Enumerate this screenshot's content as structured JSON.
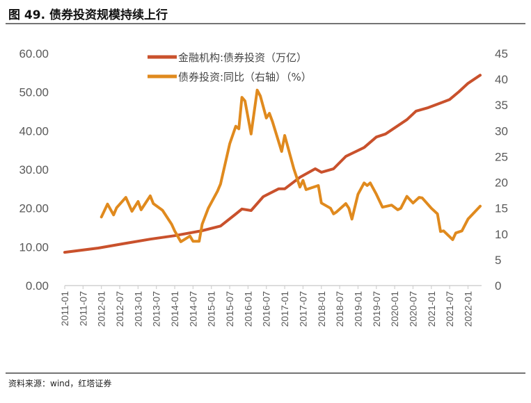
{
  "header": {
    "title": "图 49. 债券投资规模持续上行"
  },
  "footer": {
    "source": "资料来源：wind，红塔证券"
  },
  "chart_data": {
    "type": "line",
    "title": "图 49. 债券投资规模持续上行",
    "x_ticks": [
      "2011-01",
      "2011-07",
      "2012-01",
      "2012-07",
      "2013-01",
      "2013-07",
      "2014-01",
      "2014-07",
      "2015-01",
      "2015-07",
      "2016-01",
      "2016-07",
      "2017-01",
      "2017-07",
      "2018-01",
      "2018-07",
      "2019-01",
      "2019-07",
      "2020-01",
      "2020-07",
      "2021-01",
      "2021-07",
      "2022-01"
    ],
    "y_left": {
      "range": [
        0,
        60
      ],
      "ticks": [
        "0.00",
        "10.00",
        "20.00",
        "30.00",
        "40.00",
        "50.00",
        "60.00"
      ]
    },
    "y_right": {
      "range": [
        0,
        45
      ],
      "ticks": [
        "0",
        "5",
        "10",
        "15",
        "20",
        "25",
        "30",
        "35",
        "40",
        "45"
      ]
    },
    "legend_position": "top-center",
    "series": [
      {
        "name": "金融机构:债券投资（万亿）",
        "axis": "left",
        "color": "#C9512C",
        "points": [
          [
            "2011-01",
            8.6
          ],
          [
            "2011-12",
            9.7
          ],
          [
            "2012-08",
            10.8
          ],
          [
            "2013-05",
            12.0
          ],
          [
            "2014-01",
            12.9
          ],
          [
            "2014-10",
            14.2
          ],
          [
            "2015-04",
            15.4
          ],
          [
            "2015-09",
            18.5
          ],
          [
            "2015-11",
            19.8
          ],
          [
            "2016-02",
            19.4
          ],
          [
            "2016-06",
            23.0
          ],
          [
            "2016-11",
            25.0
          ],
          [
            "2017-01",
            25.0
          ],
          [
            "2017-06",
            28.0
          ],
          [
            "2017-11",
            30.2
          ],
          [
            "2018-01",
            29.3
          ],
          [
            "2018-05",
            30.2
          ],
          [
            "2018-09",
            33.4
          ],
          [
            "2019-03",
            35.7
          ],
          [
            "2019-07",
            38.4
          ],
          [
            "2019-10",
            39.2
          ],
          [
            "2020-05",
            42.9
          ],
          [
            "2020-08",
            45.1
          ],
          [
            "2020-12",
            46.0
          ],
          [
            "2021-04",
            47.2
          ],
          [
            "2021-07",
            48.1
          ],
          [
            "2021-10",
            50.1
          ],
          [
            "2022-01",
            52.3
          ],
          [
            "2022-05",
            54.4
          ]
        ]
      },
      {
        "name": "债券投资:同比（右轴）（%）",
        "axis": "right",
        "color": "#E08A1E",
        "points": [
          [
            "2012-01",
            13.3
          ],
          [
            "2012-03",
            15.8
          ],
          [
            "2012-05",
            13.7
          ],
          [
            "2012-06",
            15.1
          ],
          [
            "2012-09",
            17.1
          ],
          [
            "2012-11",
            14.4
          ],
          [
            "2013-01",
            16.3
          ],
          [
            "2013-02",
            14.7
          ],
          [
            "2013-05",
            17.4
          ],
          [
            "2013-06",
            15.9
          ],
          [
            "2013-09",
            14.6
          ],
          [
            "2013-12",
            11.9
          ],
          [
            "2014-01",
            10.6
          ],
          [
            "2014-03",
            8.5
          ],
          [
            "2014-06",
            9.6
          ],
          [
            "2014-07",
            8.6
          ],
          [
            "2014-09",
            8.6
          ],
          [
            "2014-10",
            11.9
          ],
          [
            "2014-12",
            15.0
          ],
          [
            "2015-03",
            18.3
          ],
          [
            "2015-04",
            19.7
          ],
          [
            "2015-07",
            27.5
          ],
          [
            "2015-09",
            30.9
          ],
          [
            "2015-10",
            30.4
          ],
          [
            "2015-11",
            36.5
          ],
          [
            "2015-12",
            35.8
          ],
          [
            "2016-02",
            29.4
          ],
          [
            "2016-04",
            37.9
          ],
          [
            "2016-05",
            36.8
          ],
          [
            "2016-07",
            32.5
          ],
          [
            "2016-08",
            33.4
          ],
          [
            "2016-09",
            31.8
          ],
          [
            "2016-12",
            26.0
          ],
          [
            "2017-01",
            29.1
          ],
          [
            "2017-04",
            22.6
          ],
          [
            "2017-06",
            19.1
          ],
          [
            "2017-07",
            20.4
          ],
          [
            "2017-08",
            18.6
          ],
          [
            "2017-12",
            19.4
          ],
          [
            "2018-01",
            16.0
          ],
          [
            "2018-04",
            15.0
          ],
          [
            "2018-05",
            13.9
          ],
          [
            "2018-06",
            14.3
          ],
          [
            "2018-09",
            15.9
          ],
          [
            "2018-10",
            15.0
          ],
          [
            "2018-11",
            12.9
          ],
          [
            "2019-01",
            17.7
          ],
          [
            "2019-03",
            19.9
          ],
          [
            "2019-04",
            19.4
          ],
          [
            "2019-05",
            19.9
          ],
          [
            "2019-07",
            17.7
          ],
          [
            "2019-09",
            15.2
          ],
          [
            "2019-12",
            15.6
          ],
          [
            "2020-02",
            14.7
          ],
          [
            "2020-03",
            15.0
          ],
          [
            "2020-05",
            17.3
          ],
          [
            "2020-07",
            16.0
          ],
          [
            "2020-09",
            17.1
          ],
          [
            "2020-10",
            17.0
          ],
          [
            "2021-01",
            15.0
          ],
          [
            "2021-03",
            13.9
          ],
          [
            "2021-04",
            10.5
          ],
          [
            "2021-05",
            10.6
          ],
          [
            "2021-08",
            8.9
          ],
          [
            "2021-09",
            10.2
          ],
          [
            "2021-11",
            10.6
          ],
          [
            "2022-01",
            12.9
          ],
          [
            "2022-05",
            15.4
          ]
        ]
      }
    ]
  }
}
